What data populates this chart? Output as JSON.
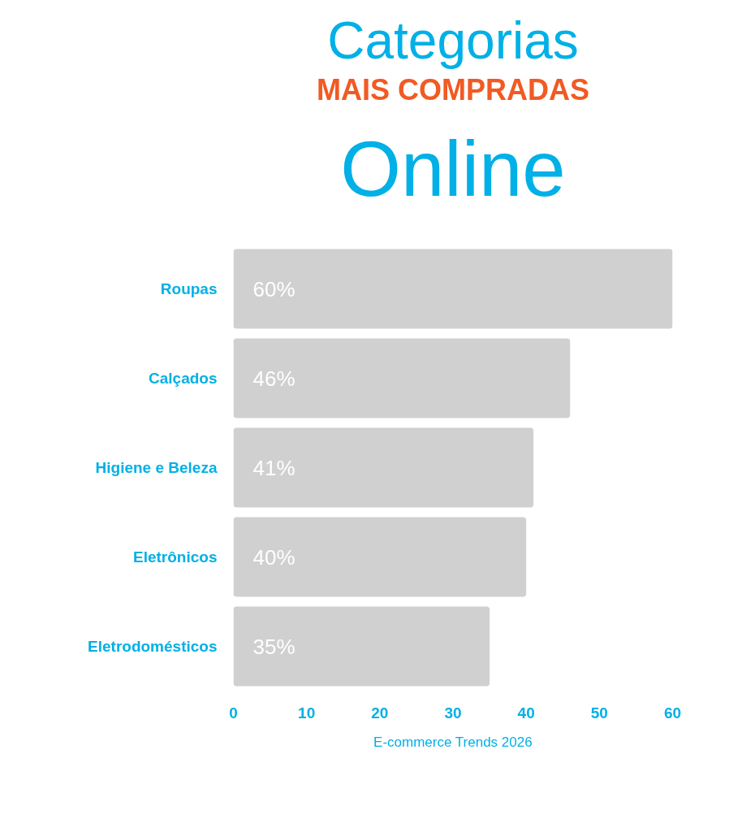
{
  "chart_data": {
    "type": "bar",
    "orientation": "horizontal",
    "title": "Categorias\nMAIS COMPRADAS\nOnline",
    "categories": [
      "Roupas",
      "Calçados",
      "Higiene e Beleza",
      "Eletrônicos",
      "Eletrodomésticos"
    ],
    "values": [
      60,
      46,
      41,
      40,
      35
    ],
    "value_labels": [
      "60%",
      "46%",
      "41%",
      "40%",
      "35%"
    ],
    "color": "#d0d0d0",
    "xlim": [
      0,
      60
    ],
    "xticks": [
      0,
      10,
      20,
      30,
      40,
      50,
      60
    ],
    "grid": false,
    "annotations": [
      "E-commerce Trends 2026"
    ]
  }
}
